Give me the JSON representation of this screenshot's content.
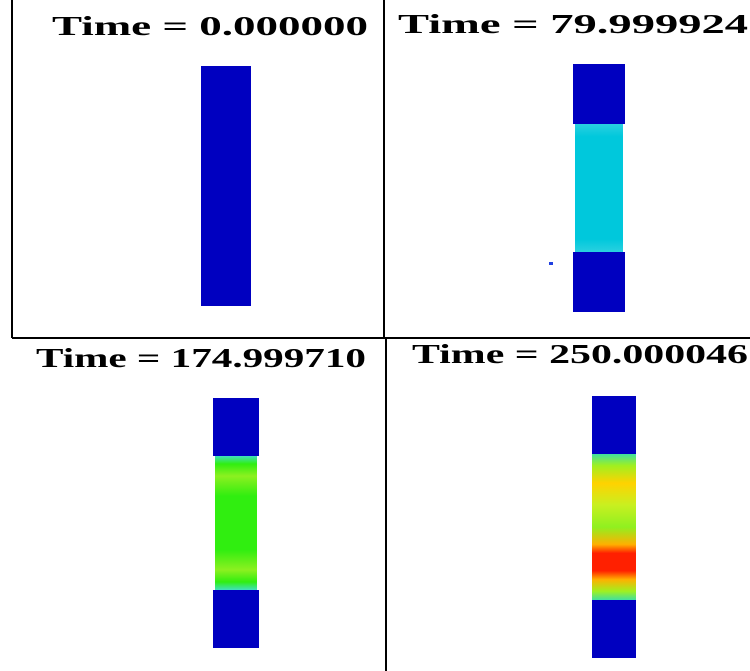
{
  "panels": [
    {
      "title": "Time = 0.000000"
    },
    {
      "title": "Time = 79.999924"
    },
    {
      "title": "Time = 174.999710"
    },
    {
      "title": "Time = 250.000046"
    }
  ]
}
